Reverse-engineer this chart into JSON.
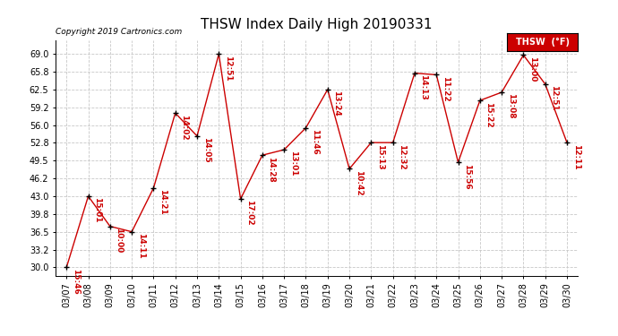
{
  "title": "THSW Index Daily High 20190331",
  "copyright": "Copyright 2019 Cartronics.com",
  "legend_label": "THSW  (°F)",
  "dates": [
    "03/07",
    "03/08",
    "03/09",
    "03/10",
    "03/11",
    "03/12",
    "03/13",
    "03/14",
    "03/15",
    "03/16",
    "03/17",
    "03/18",
    "03/19",
    "03/20",
    "03/21",
    "03/22",
    "03/23",
    "03/24",
    "03/25",
    "03/26",
    "03/27",
    "03/28",
    "03/29",
    "03/30"
  ],
  "values": [
    30.0,
    43.0,
    37.5,
    36.5,
    44.5,
    58.2,
    54.0,
    69.0,
    42.5,
    50.5,
    51.5,
    55.5,
    62.5,
    48.0,
    52.8,
    52.8,
    65.5,
    65.2,
    49.2,
    60.5,
    62.0,
    68.8,
    63.5,
    52.8
  ],
  "times": [
    "15:46",
    "15:01",
    "10:00",
    "14:11",
    "14:21",
    "14:02",
    "14:05",
    "12:51",
    "17:02",
    "14:28",
    "13:01",
    "11:46",
    "13:24",
    "10:42",
    "15:13",
    "12:32",
    "14:13",
    "11:22",
    "15:56",
    "15:22",
    "13:08",
    "13:00",
    "12:51",
    "12:11"
  ],
  "line_color": "#cc0000",
  "marker_color": "#000000",
  "bg_color": "#ffffff",
  "grid_color": "#c8c8c8",
  "text_color_red": "#cc0000",
  "text_color_black": "#000000",
  "ylim": [
    28.5,
    71.5
  ],
  "yticks": [
    30.0,
    33.2,
    36.5,
    39.8,
    43.0,
    46.2,
    49.5,
    52.8,
    56.0,
    59.2,
    62.5,
    65.8,
    69.0
  ],
  "title_fontsize": 11,
  "label_fontsize": 6.5,
  "tick_fontsize": 7,
  "copyright_fontsize": 6.5
}
